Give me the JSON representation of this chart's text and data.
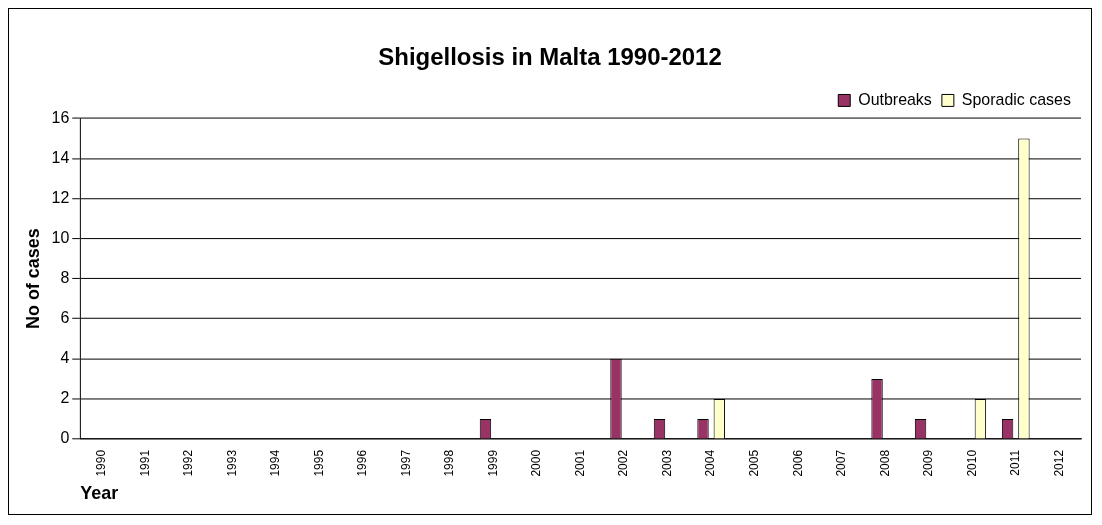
{
  "chart_data": {
    "type": "bar",
    "title": "Shigellosis in Malta 1990-2012",
    "xlabel": "Year",
    "ylabel": "No of cases",
    "categories": [
      "1990",
      "1991",
      "1992",
      "1993",
      "1994",
      "1995",
      "1996",
      "1997",
      "1998",
      "1999",
      "2000",
      "2001",
      "2002",
      "2003",
      "2004",
      "2005",
      "2006",
      "2007",
      "2008",
      "2009",
      "2010",
      "2011",
      "2012"
    ],
    "series": [
      {
        "name": "Outbreaks",
        "color": "#993366",
        "values": [
          0,
          0,
          0,
          0,
          0,
          0,
          0,
          0,
          0,
          1,
          0,
          0,
          4,
          1,
          1,
          0,
          0,
          0,
          3,
          1,
          0,
          1,
          0
        ]
      },
      {
        "name": "Sporadic cases",
        "color": "#ffffcc",
        "values": [
          0,
          0,
          0,
          0,
          0,
          0,
          0,
          0,
          0,
          0,
          0,
          0,
          0,
          0,
          2,
          0,
          0,
          0,
          0,
          0,
          2,
          15,
          0
        ]
      }
    ],
    "ylim": [
      0,
      16
    ],
    "yticks": [
      0,
      2,
      4,
      6,
      8,
      10,
      12,
      14,
      16
    ],
    "grid": "y",
    "legend": "top right"
  }
}
